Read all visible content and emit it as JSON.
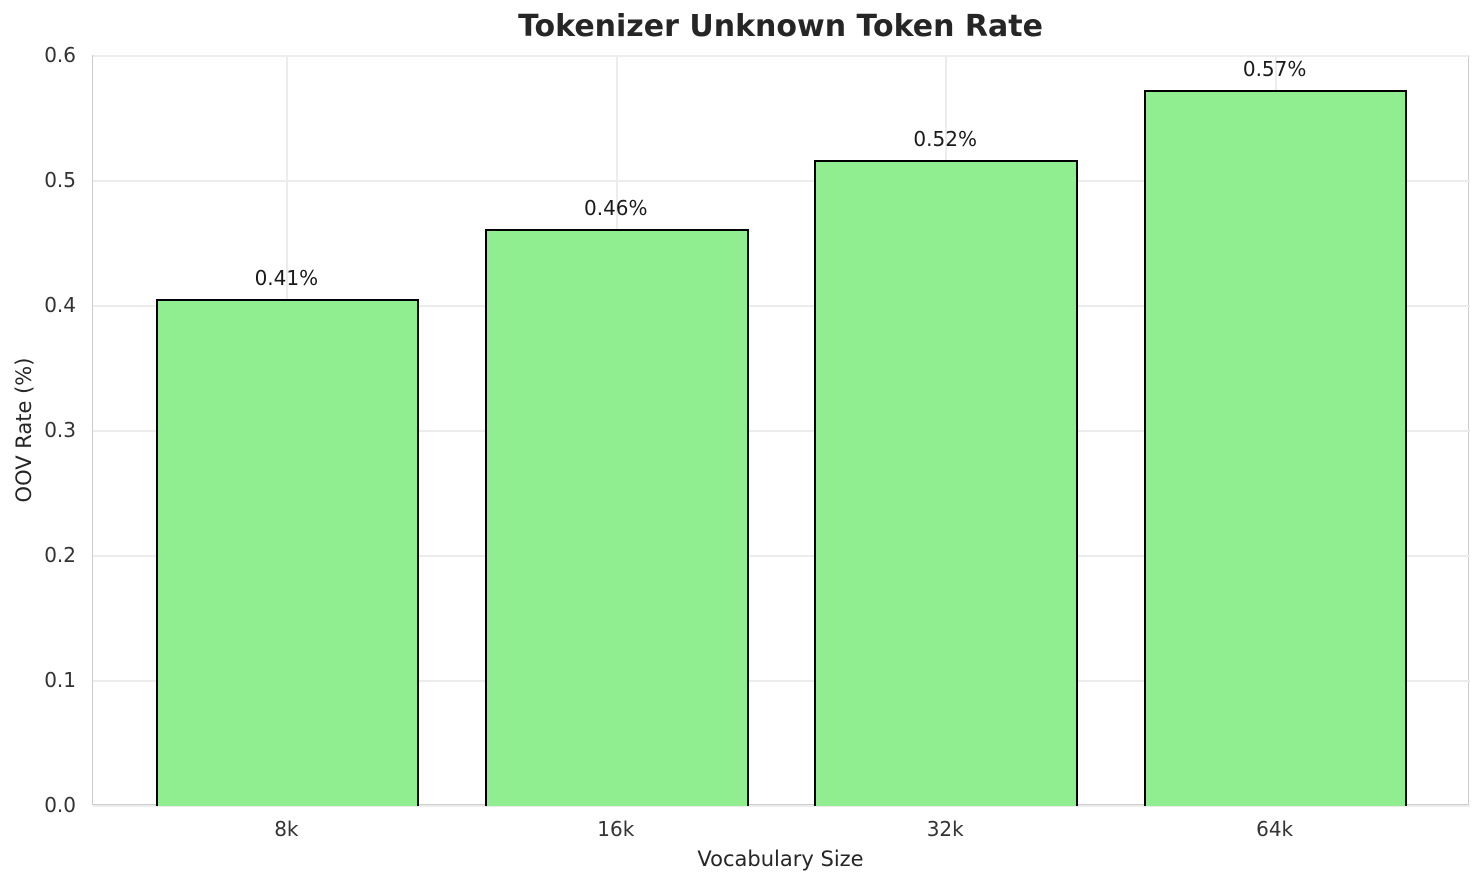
{
  "chart_data": {
    "type": "bar",
    "title": "Tokenizer Unknown Token Rate",
    "xlabel": "Vocabulary Size",
    "ylabel": "OOV Rate (%)",
    "categories": [
      "8k",
      "16k",
      "32k",
      "64k"
    ],
    "values": [
      0.406,
      0.462,
      0.517,
      0.573
    ],
    "bar_labels": [
      "0.41%",
      "0.46%",
      "0.52%",
      "0.57%"
    ],
    "ylim": [
      0.0,
      0.6
    ],
    "ytick_labels": [
      "0.0",
      "0.1",
      "0.2",
      "0.3",
      "0.4",
      "0.5",
      "0.6"
    ],
    "grid": true,
    "legend": false,
    "colors": {
      "bar_fill": "#90EE90",
      "bar_edge": "#000000",
      "grid_line": "#ececec",
      "spine": "#cccccc",
      "title_text": "#262626",
      "tick_text": "#333333",
      "axis_label_text": "#262626",
      "annotation_text": "#1a1a1a",
      "background": "#ffffff"
    }
  }
}
